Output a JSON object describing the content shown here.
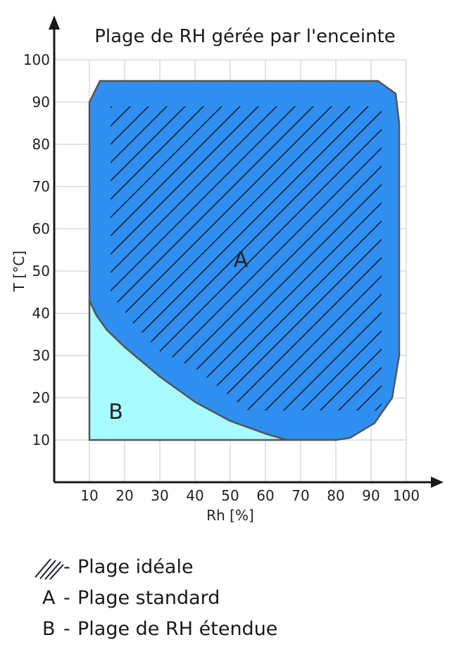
{
  "chart_data": {
    "type": "area",
    "title": "Plage de RH gérée par l'enceinte",
    "xlabel": "Rh [%]",
    "ylabel": "T [°C]",
    "xlim": [
      0,
      100
    ],
    "ylim": [
      0,
      100
    ],
    "x_ticks": [
      "10",
      "20",
      "30",
      "40",
      "50",
      "60",
      "70",
      "80",
      "90",
      "100"
    ],
    "y_ticks": [
      "10",
      "20",
      "30",
      "40",
      "50",
      "60",
      "70",
      "80",
      "90",
      "100"
    ],
    "grid": true,
    "colors": {
      "standard": "#2f8ff0",
      "extended": "#a8fcff",
      "outline": "#555555",
      "hatch": "#1b1f2a"
    },
    "regions": [
      {
        "key": "A",
        "label": "Plage standard",
        "label_at": [
          53,
          53
        ],
        "boundary": [
          [
            10,
            43
          ],
          [
            10,
            90
          ],
          [
            13,
            95
          ],
          [
            92,
            95
          ],
          [
            97,
            92
          ],
          [
            98,
            85
          ],
          [
            98,
            30
          ],
          [
            96,
            20
          ],
          [
            91,
            14
          ],
          [
            84,
            10.5
          ],
          [
            80,
            10
          ],
          [
            66,
            10
          ],
          [
            60,
            11.5
          ],
          [
            50,
            14.5
          ],
          [
            40,
            19
          ],
          [
            30,
            25
          ],
          [
            20,
            32
          ],
          [
            15,
            36
          ],
          [
            12,
            39.5
          ]
        ]
      },
      {
        "key": "B",
        "label": "Plage de RH étendue",
        "label_at": [
          17.5,
          17
        ],
        "boundary": [
          [
            10,
            10
          ],
          [
            66,
            10
          ],
          [
            60,
            11.5
          ],
          [
            50,
            14.5
          ],
          [
            40,
            19
          ],
          [
            30,
            25
          ],
          [
            20,
            32
          ],
          [
            15,
            36
          ],
          [
            12,
            39.5
          ],
          [
            10,
            43
          ]
        ]
      },
      {
        "key": "hatch",
        "label": "Plage idéale",
        "boundary": [
          [
            16,
            89
          ],
          [
            93,
            89
          ],
          [
            93,
            17
          ],
          [
            55,
            17
          ],
          [
            40,
            27
          ],
          [
            30,
            31
          ],
          [
            22,
            38
          ],
          [
            16,
            45
          ]
        ]
      }
    ]
  },
  "legend": [
    {
      "key": "",
      "dash": "-",
      "text": "Plage idéale",
      "swatch": "hatch"
    },
    {
      "key": "A",
      "dash": "-",
      "text": "Plage standard"
    },
    {
      "key": "B",
      "dash": "-",
      "text": "Plage de RH étendue"
    }
  ]
}
